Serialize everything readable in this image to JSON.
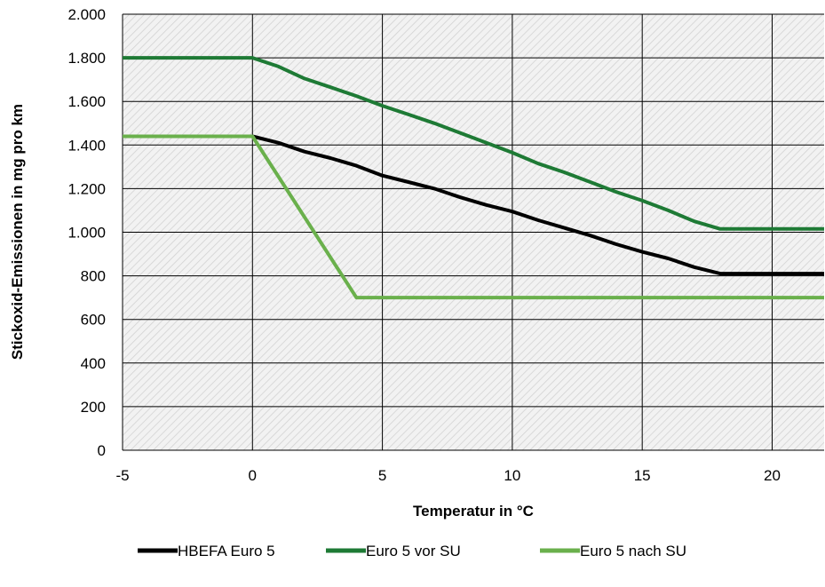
{
  "chart_data": {
    "type": "line",
    "xlabel": "Temperatur in °C",
    "ylabel": "Stickoxid-Emissionen in mg pro km",
    "xlim": [
      -5,
      22
    ],
    "ylim": [
      0,
      2000
    ],
    "x_ticks": [
      {
        "value": -5,
        "label": "-5"
      },
      {
        "value": 0,
        "label": "0"
      },
      {
        "value": 5,
        "label": "5"
      },
      {
        "value": 10,
        "label": "10"
      },
      {
        "value": 15,
        "label": "15"
      },
      {
        "value": 20,
        "label": "20"
      }
    ],
    "y_ticks": [
      {
        "value": 0,
        "label": "0"
      },
      {
        "value": 200,
        "label": "200"
      },
      {
        "value": 400,
        "label": "400"
      },
      {
        "value": 600,
        "label": "600"
      },
      {
        "value": 800,
        "label": "800"
      },
      {
        "value": 1000,
        "label": "1.000"
      },
      {
        "value": 1200,
        "label": "1.200"
      },
      {
        "value": 1400,
        "label": "1.400"
      },
      {
        "value": 1600,
        "label": "1.600"
      },
      {
        "value": 1800,
        "label": "1.800"
      },
      {
        "value": 2000,
        "label": "2.000"
      }
    ],
    "grid": true,
    "background": "hatched light grey",
    "legend_position": "bottom",
    "series": [
      {
        "name": "HBEFA Euro 5",
        "color": "#000000",
        "points": [
          [
            -5,
            null
          ],
          [
            0,
            1440
          ],
          [
            1,
            1410
          ],
          [
            2,
            1370
          ],
          [
            3,
            1340
          ],
          [
            4,
            1305
          ],
          [
            5,
            1260
          ],
          [
            6,
            1230
          ],
          [
            7,
            1200
          ],
          [
            8,
            1160
          ],
          [
            9,
            1125
          ],
          [
            10,
            1095
          ],
          [
            11,
            1055
          ],
          [
            12,
            1020
          ],
          [
            13,
            985
          ],
          [
            14,
            945
          ],
          [
            15,
            910
          ],
          [
            16,
            880
          ],
          [
            17,
            840
          ],
          [
            18,
            810
          ],
          [
            22,
            810
          ]
        ]
      },
      {
        "name": "Euro 5 vor SU",
        "color": "#1e7a35",
        "points": [
          [
            -5,
            1800
          ],
          [
            0,
            1800
          ],
          [
            1,
            1760
          ],
          [
            2,
            1705
          ],
          [
            3,
            1665
          ],
          [
            4,
            1625
          ],
          [
            5,
            1580
          ],
          [
            6,
            1540
          ],
          [
            7,
            1500
          ],
          [
            8,
            1455
          ],
          [
            9,
            1410
          ],
          [
            10,
            1365
          ],
          [
            11,
            1315
          ],
          [
            12,
            1275
          ],
          [
            13,
            1230
          ],
          [
            14,
            1185
          ],
          [
            15,
            1145
          ],
          [
            16,
            1100
          ],
          [
            17,
            1050
          ],
          [
            18,
            1015
          ],
          [
            22,
            1015
          ]
        ]
      },
      {
        "name": "Euro 5 nach SU",
        "color": "#6ab04c",
        "points": [
          [
            -5,
            1440
          ],
          [
            0,
            1440
          ],
          [
            4,
            700
          ],
          [
            22,
            700
          ]
        ]
      }
    ]
  }
}
